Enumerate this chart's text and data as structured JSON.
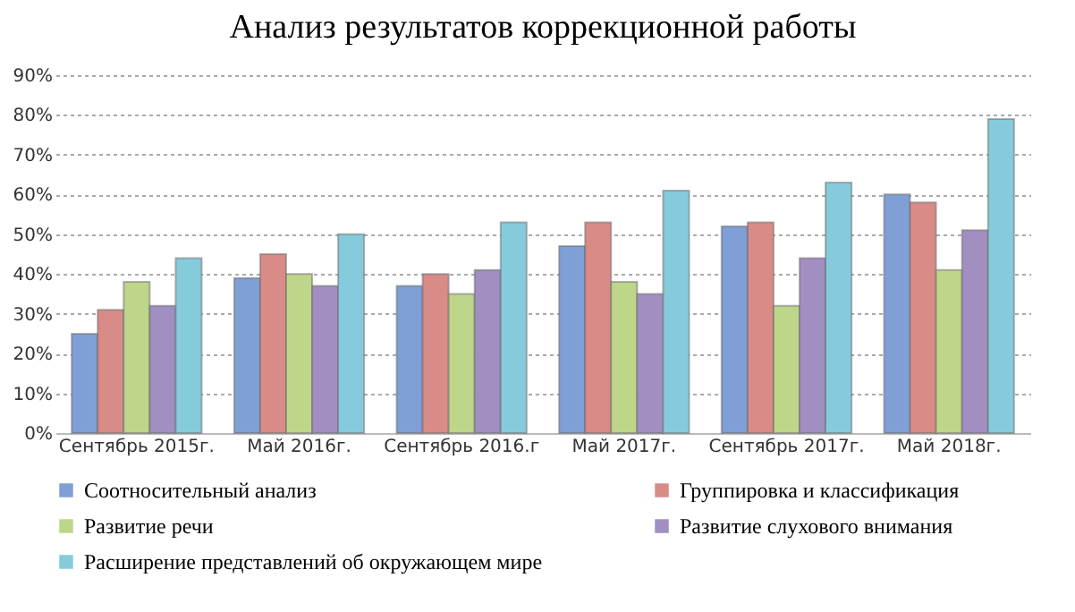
{
  "chart_data": {
    "type": "bar",
    "title": "Анализ  результатов  коррекционной  работы",
    "categories": [
      "Сентябрь 2015г.",
      "Май 2016г.",
      "Сентябрь 2016.г",
      "Май 2017г.",
      "Сентябрь 2017г.",
      "Май 2018г."
    ],
    "series": [
      {
        "name": "Соотносительный анализ",
        "color": "#7f9fd6",
        "values": [
          25,
          39,
          37,
          47,
          52,
          60
        ]
      },
      {
        "name": "Группировка и классификация",
        "color": "#d98b88",
        "values": [
          31,
          45,
          40,
          53,
          53,
          58
        ]
      },
      {
        "name": "Развитие речи",
        "color": "#bdd68a",
        "values": [
          38,
          40,
          35,
          38,
          32,
          41
        ]
      },
      {
        "name": "Развитие слухового внимания",
        "color": "#a28fc2",
        "values": [
          32,
          37,
          41,
          35,
          44,
          51
        ]
      },
      {
        "name": "Расширение представлений об окружающем мире",
        "color": "#86cbdc",
        "values": [
          44,
          50,
          53,
          61,
          63,
          79
        ]
      }
    ],
    "ylim": [
      0,
      90
    ],
    "yticks": [
      {
        "value": 0,
        "label": "0%"
      },
      {
        "value": 10,
        "label": "10%"
      },
      {
        "value": 20,
        "label": "20%"
      },
      {
        "value": 30,
        "label": "30%"
      },
      {
        "value": 40,
        "label": "40%"
      },
      {
        "value": 50,
        "label": "50%"
      },
      {
        "value": 60,
        "label": "60%"
      },
      {
        "value": 70,
        "label": "70%"
      },
      {
        "value": 80,
        "label": "80%"
      },
      {
        "value": 90,
        "label": "90%"
      }
    ],
    "grid": "y",
    "legend": "bottom"
  }
}
